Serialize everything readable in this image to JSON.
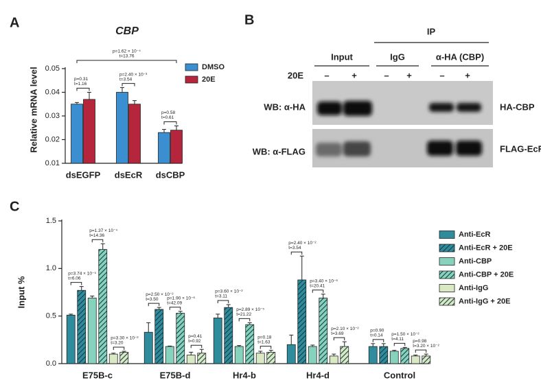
{
  "panel_labels": [
    "A",
    "B",
    "C"
  ],
  "chart_data": [
    {
      "type": "bar",
      "title": "CBP",
      "ylabel": "Relative mRNA level",
      "categories": [
        "dsEGFP",
        "dsEcR",
        "dsCBP"
      ],
      "series": [
        {
          "name": "DMSO",
          "color": "#3b8fd0",
          "values": [
            0.035,
            0.04,
            0.023
          ],
          "errors": [
            0.0007,
            0.002,
            0.0013
          ]
        },
        {
          "name": "20E",
          "color": "#b5263d",
          "values": [
            0.037,
            0.035,
            0.024
          ],
          "errors": [
            0.003,
            0.0015,
            0.0018
          ]
        }
      ],
      "ylim": [
        0.01,
        0.05
      ],
      "yticks": [
        0.01,
        0.02,
        0.03,
        0.04,
        0.05
      ],
      "legend": "top-right",
      "annotations": [
        {
          "p": "p=0.31",
          "t": "t=1.16"
        },
        {
          "p": "p=2.40 × 10⁻³",
          "t": "t=3.54"
        },
        {
          "p": "p=0.58",
          "t": "t=0.61"
        },
        {
          "p": "p=1.62 × 10⁻⁴",
          "t": "t=13.76"
        }
      ]
    },
    {
      "type": "bar",
      "ylabel": "Input %",
      "categories": [
        "E75B-c",
        "E75B-d",
        "Hr4-b",
        "Hr4-d",
        "Control"
      ],
      "series": [
        {
          "name": "Anti-EcR",
          "color": "#2e8c9c",
          "hatch": false,
          "values": [
            0.51,
            0.33,
            0.48,
            0.2,
            0.18
          ],
          "errors": [
            0.01,
            0.1,
            0.04,
            0.1,
            0.03
          ]
        },
        {
          "name": "Anti-EcR + 20E",
          "color": "#2e8c9c",
          "hatch": true,
          "values": [
            0.77,
            0.57,
            0.59,
            0.88,
            0.18
          ],
          "errors": [
            0.04,
            0.02,
            0.03,
            0.25,
            0.03
          ]
        },
        {
          "name": "Anti-CBP",
          "color": "#86d2bd",
          "hatch": false,
          "values": [
            0.69,
            0.18,
            0.18,
            0.18,
            0.13
          ],
          "errors": [
            0.02,
            0.005,
            0.01,
            0.015,
            0.01
          ]
        },
        {
          "name": "Anti-CBP + 20E",
          "color": "#86d2bd",
          "hatch": true,
          "values": [
            1.2,
            0.53,
            0.41,
            0.69,
            0.16
          ],
          "errors": [
            0.06,
            0.02,
            0.02,
            0.04,
            0.01
          ]
        },
        {
          "name": "Anti-IgG",
          "color": "#d8e9c3",
          "hatch": false,
          "values": [
            0.1,
            0.09,
            0.11,
            0.08,
            0.08
          ],
          "errors": [
            0.01,
            0.03,
            0.02,
            0.02,
            0.01
          ]
        },
        {
          "name": "Anti-IgG + 20E",
          "color": "#d8e9c3",
          "hatch": true,
          "values": [
            0.12,
            0.11,
            0.12,
            0.18,
            0.08
          ],
          "errors": [
            0.01,
            0.04,
            0.02,
            0.05,
            0.02
          ]
        }
      ],
      "ylim": [
        0,
        1.5
      ],
      "yticks": [
        {
          "value": 0,
          "label": "0.0"
        },
        0.5,
        {
          "value": 1,
          "label": "1.0"
        },
        1.5
      ],
      "legend": "right",
      "annotations": [
        {
          "p": "p=3.74 × 10⁻⁵",
          "t": "t=6.06"
        },
        {
          "p": "p=1.37 × 10⁻⁴",
          "t": "t=14.36"
        },
        {
          "p": "p=3.30 × 10⁻²",
          "t": "t=3.20"
        },
        {
          "p": "p=2.50 × 10⁻²",
          "t": "t=3.50"
        },
        {
          "p": "p=1.90 × 10⁻⁶",
          "t": "t=42.09"
        },
        {
          "p": "p=0.41",
          "t": "t=0.92"
        },
        {
          "p": "p=3.60 × 10⁻²",
          "t": "t=3.11"
        },
        {
          "p": "p=2.89 × 10⁻⁵",
          "t": "t=21.22"
        },
        {
          "p": "p=0.18",
          "t": "t=1.63"
        },
        {
          "p": "p=2.40 × 10⁻²",
          "t": "t=3.54"
        },
        {
          "p": "p=3.40 × 10⁻⁶",
          "t": "t=20.41"
        },
        {
          "p": "p=2.10 × 10⁻²",
          "t": "t=3.69"
        },
        {
          "p": "p=0.90",
          "t": "t=0.14"
        },
        {
          "p": "p=1.50 × 10⁻²",
          "t": "t=4.11"
        },
        {
          "p": "p=0.98",
          "t": "t=3.20 × 10⁻²"
        }
      ]
    }
  ],
  "blot": {
    "label": "IP",
    "groups": [
      "Input",
      "IgG",
      "α-HA (CBP)"
    ],
    "treatment": "20E",
    "lanes": [
      "–",
      "+",
      "–",
      "+",
      "–",
      "+"
    ],
    "rows": [
      {
        "antibody": "WB: α-HA",
        "target": "HA-CBP"
      },
      {
        "antibody": "WB: α-FLAG",
        "target": "FLAG-EcR"
      }
    ]
  }
}
